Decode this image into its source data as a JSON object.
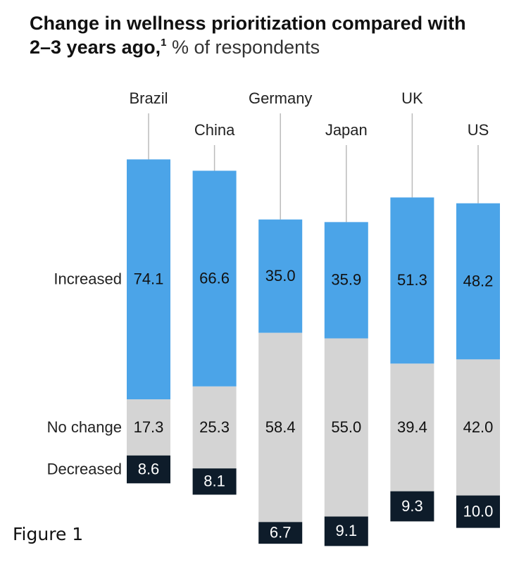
{
  "chart_data": {
    "type": "diverging-stacked-bar",
    "title": "Change in wellness prioritization compared with 2–3 years ago,",
    "title_footnote": "1",
    "subtitle": "% of respondents",
    "categories": [
      "Brazil",
      "China",
      "Germany",
      "Japan",
      "UK",
      "US"
    ],
    "center_series": "No change",
    "series": [
      {
        "name": "Increased",
        "color": "#4ba4e8",
        "values": [
          74.1,
          66.6,
          35.0,
          35.9,
          51.3,
          48.2
        ],
        "value_labels": [
          "74.1",
          "66.6",
          "35.0",
          "35.9",
          "51.3",
          "48.2"
        ]
      },
      {
        "name": "No change",
        "color": "#d4d4d4",
        "values": [
          17.3,
          25.3,
          58.4,
          55.0,
          39.4,
          42.0
        ],
        "value_labels": [
          "17.3",
          "25.3",
          "58.4",
          "55.0",
          "39.4",
          "42.0"
        ]
      },
      {
        "name": "Decreased",
        "color": "#0e1c2a",
        "values": [
          8.6,
          8.1,
          6.7,
          9.1,
          9.3,
          10.0
        ],
        "value_labels": [
          "8.6",
          "8.1",
          "6.7",
          "9.1",
          "9.3",
          "10.0"
        ]
      }
    ]
  },
  "caption": "Figure 1"
}
